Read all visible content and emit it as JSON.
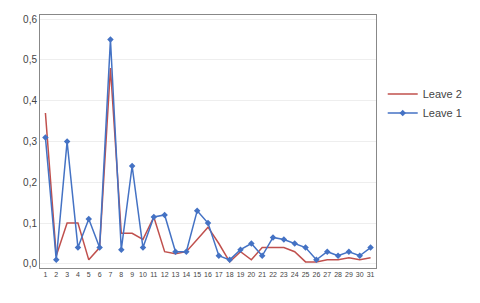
{
  "chart_data": {
    "type": "line",
    "x": [
      1,
      2,
      3,
      4,
      5,
      6,
      7,
      8,
      9,
      10,
      11,
      12,
      13,
      14,
      15,
      16,
      17,
      18,
      19,
      20,
      21,
      22,
      23,
      24,
      25,
      26,
      27,
      28,
      29,
      30,
      31
    ],
    "series": [
      {
        "name": "Leave 2",
        "color": "#C0504D",
        "values": [
          0.37,
          0.02,
          0.1,
          0.1,
          0.01,
          0.04,
          0.48,
          0.075,
          0.075,
          0.06,
          0.115,
          0.03,
          0.025,
          0.03,
          0.06,
          0.09,
          0.05,
          0.005,
          0.03,
          0.01,
          0.04,
          0.04,
          0.04,
          0.03,
          0.005,
          0.005,
          0.01,
          0.01,
          0.015,
          0.01,
          0.015
        ]
      },
      {
        "name": "Leave 1",
        "color": "#4472C4",
        "marker": "diamond",
        "values": [
          0.31,
          0.01,
          0.3,
          0.04,
          0.11,
          0.04,
          0.55,
          0.035,
          0.24,
          0.04,
          0.115,
          0.12,
          0.03,
          0.03,
          0.13,
          0.1,
          0.02,
          0.01,
          0.035,
          0.05,
          0.02,
          0.065,
          0.06,
          0.05,
          0.04,
          0.01,
          0.03,
          0.02,
          0.03,
          0.02,
          0.04
        ]
      }
    ],
    "xlim": [
      0.5,
      31.5
    ],
    "xticks": [
      1,
      2,
      3,
      4,
      5,
      6,
      7,
      8,
      9,
      10,
      11,
      12,
      13,
      14,
      15,
      16,
      17,
      18,
      19,
      20,
      21,
      22,
      23,
      24,
      25,
      26,
      27,
      28,
      29,
      30,
      31
    ],
    "ylim": [
      -0.01,
      0.61
    ],
    "yticks": [
      {
        "value": 0.0,
        "label": "0,0"
      },
      {
        "value": 0.1,
        "label": "0,1"
      },
      {
        "value": 0.2,
        "label": "0,2"
      },
      {
        "value": 0.3,
        "label": "0,3"
      },
      {
        "value": 0.4,
        "label": "0,4"
      },
      {
        "value": 0.5,
        "label": "0,5"
      },
      {
        "value": 0.6,
        "label": "0,6"
      }
    ],
    "grid": "y",
    "legend": "right"
  }
}
